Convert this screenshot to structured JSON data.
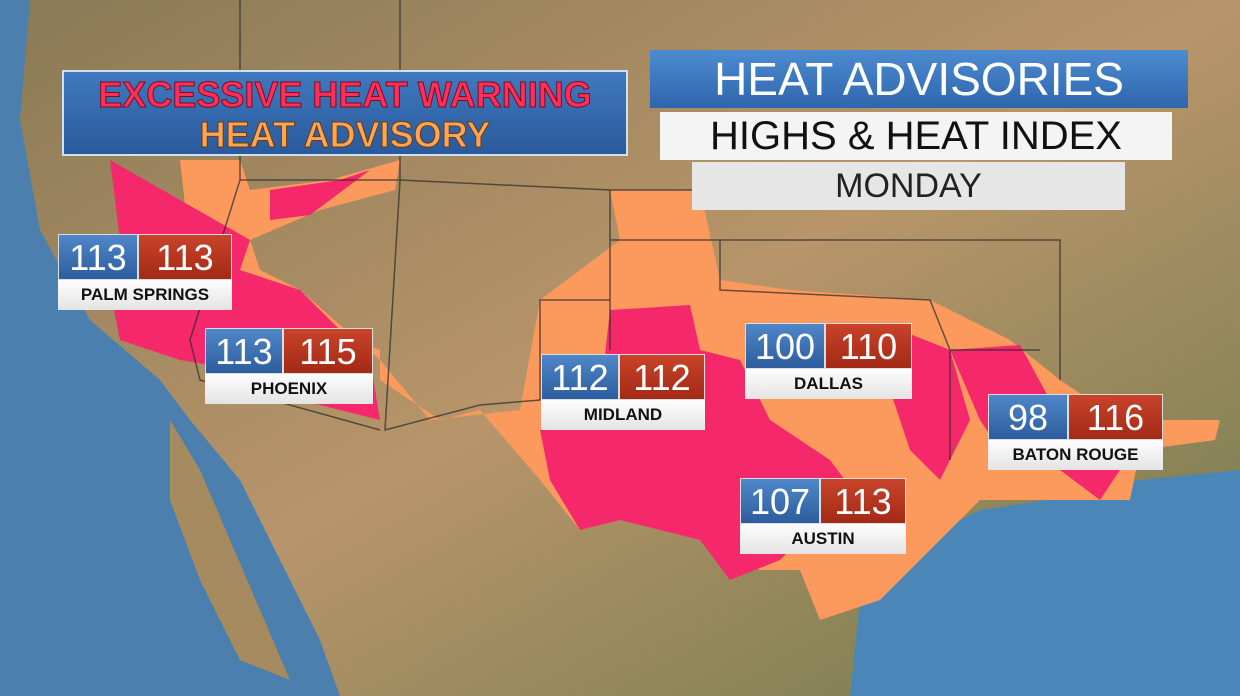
{
  "legend": {
    "warning": "EXCESSIVE HEAT WARNING",
    "advisory": "HEAT ADVISORY"
  },
  "header": {
    "title": "HEAT ADVISORIES",
    "subtitle": "HIGHS & HEAT INDEX",
    "day": "MONDAY"
  },
  "cities": [
    {
      "name": "PALM SPRINGS",
      "high": 113,
      "heat_index": 113
    },
    {
      "name": "PHOENIX",
      "high": 113,
      "heat_index": 115
    },
    {
      "name": "MIDLAND",
      "high": 112,
      "heat_index": 112
    },
    {
      "name": "DALLAS",
      "high": 100,
      "heat_index": 110
    },
    {
      "name": "BATON ROUGE",
      "high": 98,
      "heat_index": 116
    },
    {
      "name": "AUSTIN",
      "high": 107,
      "heat_index": 113
    }
  ]
}
